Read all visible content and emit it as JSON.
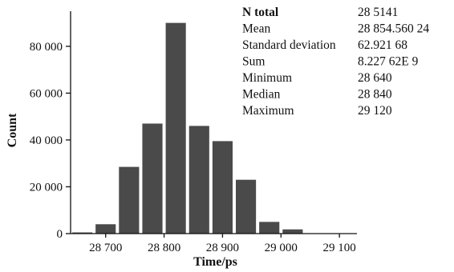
{
  "chart_data": {
    "type": "bar",
    "title": "",
    "xlabel": "Time/ps",
    "ylabel": "Count",
    "bin_centers": [
      28660,
      28700,
      28740,
      28780,
      28820,
      28860,
      28900,
      28940,
      28980,
      29020,
      29060
    ],
    "values": [
      500,
      4000,
      28500,
      47000,
      90000,
      46000,
      39500,
      23000,
      5000,
      1800,
      150
    ],
    "xlim": [
      28640,
      29130
    ],
    "ylim": [
      0,
      95000
    ],
    "x_ticks": [
      28700,
      28800,
      28900,
      29000,
      29100
    ],
    "x_tick_labels": [
      "28 700",
      "28 800",
      "28 900",
      "29 000",
      "29 100"
    ],
    "y_ticks": [
      0,
      20000,
      40000,
      60000,
      80000
    ],
    "y_tick_labels": [
      "0",
      "20 000",
      "40 000",
      "60 000",
      "80 000"
    ],
    "bar_color": "#4a4a4a",
    "grid": false,
    "stats": [
      {
        "label": "N total",
        "value": "28 5141",
        "bold": true
      },
      {
        "label": "Mean",
        "value": "28 854.560 24",
        "bold": false
      },
      {
        "label": "Standard deviation",
        "value": "62.921 68",
        "bold": false
      },
      {
        "label": "Sum",
        "value": "8.227 62E 9",
        "bold": false
      },
      {
        "label": "Minimum",
        "value": "28 640",
        "bold": false
      },
      {
        "label": "Median",
        "value": "28 840",
        "bold": false
      },
      {
        "label": "Maximum",
        "value": "29 120",
        "bold": false
      }
    ]
  }
}
